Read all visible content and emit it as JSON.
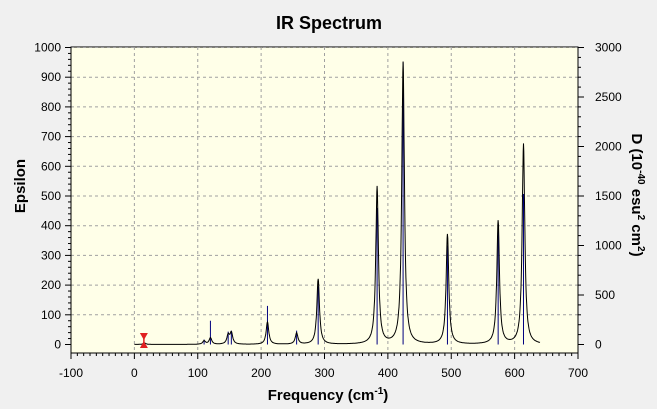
{
  "chart_data": {
    "type": "line",
    "title": "IR Spectrum",
    "xlabel": "Frequency (cm",
    "xlabel_sup": "-1",
    "xlabel_end": ")",
    "ylabel": "Epsilon",
    "y2label_parts": [
      "D (10",
      "-40",
      " esu",
      "2",
      " cm",
      "2",
      ")"
    ],
    "xlim": [
      -100,
      700
    ],
    "ylim": [
      0,
      1000
    ],
    "y2lim": [
      0,
      3000
    ],
    "x_ticks": [
      "-100",
      "0",
      "100",
      "200",
      "300",
      "400",
      "500",
      "600",
      "700"
    ],
    "y_ticks": [
      "0",
      "100",
      "200",
      "300",
      "400",
      "500",
      "600",
      "700",
      "800",
      "900",
      "1000"
    ],
    "y2_ticks": [
      "0",
      "500",
      "1000",
      "1500",
      "2000",
      "2500",
      "3000"
    ],
    "grid": true,
    "background_color": "#ffffe8",
    "spectrum_color": "#000000",
    "stick_color": "#00007f",
    "marker_color": "#e02020",
    "marker_x": 15,
    "peaks": [
      {
        "x": 16,
        "epsilon": 5,
        "D": 15
      },
      {
        "x": 110,
        "epsilon": 12,
        "D": 50
      },
      {
        "x": 120,
        "epsilon": 22,
        "D": 240
      },
      {
        "x": 148,
        "epsilon": 30,
        "D": 130
      },
      {
        "x": 153,
        "epsilon": 38,
        "D": 140
      },
      {
        "x": 210,
        "epsilon": 75,
        "D": 390
      },
      {
        "x": 256,
        "epsilon": 38,
        "D": 140
      },
      {
        "x": 290,
        "epsilon": 220,
        "D": 590
      },
      {
        "x": 383,
        "epsilon": 530,
        "D": 1380
      },
      {
        "x": 424,
        "epsilon": 950,
        "D": 2850
      },
      {
        "x": 494,
        "epsilon": 370,
        "D": 1000
      },
      {
        "x": 574,
        "epsilon": 415,
        "D": 1140
      },
      {
        "x": 614,
        "epsilon": 675,
        "D": 1520
      }
    ]
  }
}
